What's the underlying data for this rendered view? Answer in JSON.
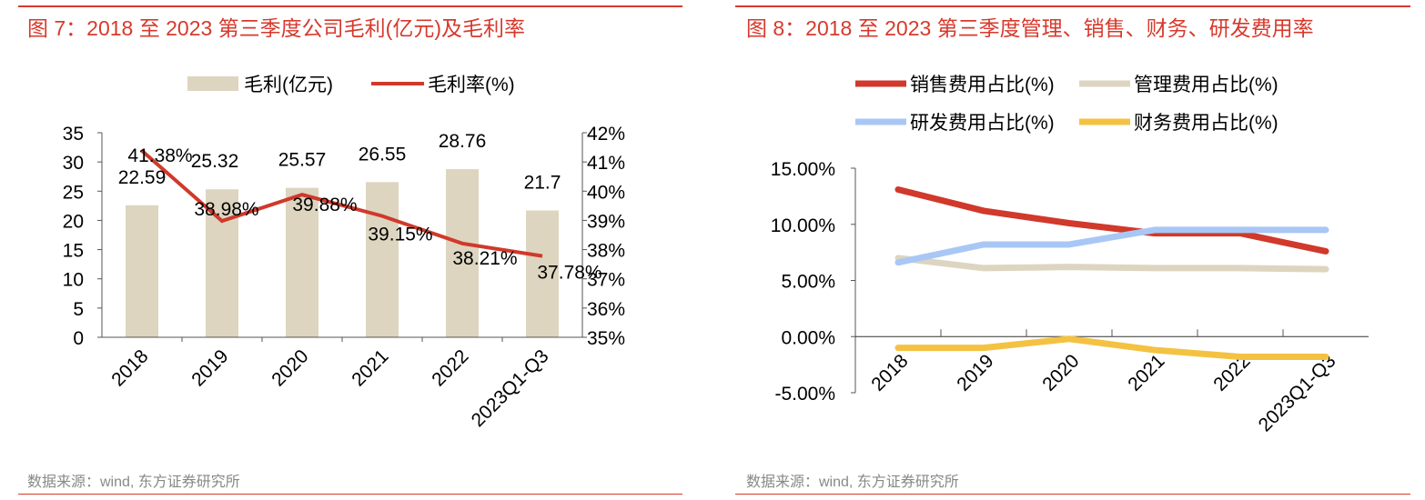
{
  "chart_data": [
    {
      "type": "bar+line",
      "title": "图 7：2018 至 2023 第三季度公司毛利(亿元)及毛利率",
      "source": "数据来源：wind, 东方证券研究所",
      "categories": [
        "2018",
        "2019",
        "2020",
        "2021",
        "2022",
        "2023Q1-Q3"
      ],
      "series": [
        {
          "name": "毛利(亿元)",
          "type": "bar",
          "axis": "left",
          "color": "#ddd5c0",
          "values": [
            22.59,
            25.32,
            25.57,
            26.55,
            28.76,
            21.7
          ],
          "labels": [
            "22.59",
            "25.32",
            "25.57",
            "26.55",
            "28.76",
            "21.7"
          ]
        },
        {
          "name": "毛利率(%)",
          "type": "line",
          "axis": "right",
          "color": "#d0392b",
          "values": [
            41.38,
            38.98,
            39.88,
            39.15,
            38.21,
            37.78
          ],
          "labels": [
            "41.38%",
            "38.98%",
            "39.88%",
            "39.15%",
            "38.21%",
            "37.78%"
          ]
        }
      ],
      "y_left": {
        "range": [
          0,
          35
        ],
        "ticks": [
          "0",
          "5",
          "10",
          "15",
          "20",
          "25",
          "30",
          "35"
        ]
      },
      "y_right": {
        "range": [
          35,
          42
        ],
        "ticks": [
          "35%",
          "36%",
          "37%",
          "38%",
          "39%",
          "40%",
          "41%",
          "42%"
        ]
      },
      "legend": "top",
      "grid": false
    },
    {
      "type": "line",
      "title": "图 8：2018 至 2023 第三季度管理、销售、财务、研发费用率",
      "source": "数据来源：wind, 东方证券研究所",
      "categories": [
        "2018",
        "2019",
        "2020",
        "2021",
        "2022",
        "2023Q1-Q3"
      ],
      "series": [
        {
          "name": "销售费用占比(%)",
          "color": "#d0392b",
          "values": [
            13.1,
            11.2,
            10.1,
            9.2,
            9.2,
            7.6
          ]
        },
        {
          "name": "管理费用占比(%)",
          "color": "#ddd5c0",
          "values": [
            7.0,
            6.1,
            6.2,
            6.1,
            6.1,
            6.0
          ]
        },
        {
          "name": "研发费用占比(%)",
          "color": "#a9c7f5",
          "values": [
            6.6,
            8.2,
            8.2,
            9.5,
            9.5,
            9.5
          ]
        },
        {
          "name": "财务费用占比(%)",
          "color": "#f4c242",
          "values": [
            -1.0,
            -1.0,
            -0.2,
            -1.2,
            -1.8,
            -1.8
          ]
        }
      ],
      "y": {
        "range": [
          -5,
          15
        ],
        "ticks": [
          "-5.00%",
          "0.00%",
          "5.00%",
          "10.00%",
          "15.00%"
        ]
      },
      "legend": "top",
      "grid": false
    }
  ]
}
